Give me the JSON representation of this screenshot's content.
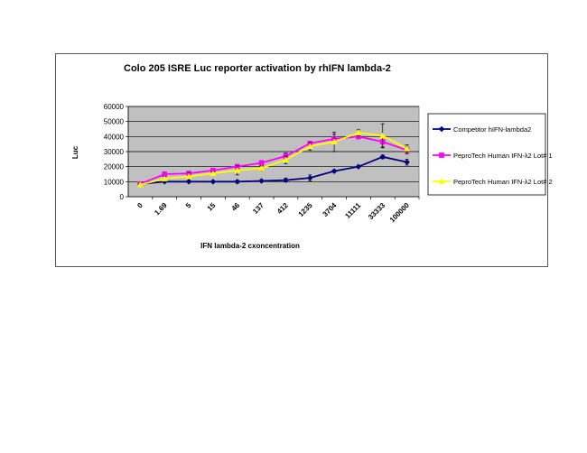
{
  "chart_data": {
    "type": "line",
    "title": "Colo 205 ISRE Luc reporter activation by rhIFN lambda-2",
    "xlabel": "IFN lambda-2 cxoncentration",
    "ylabel": "Luc",
    "categories": [
      "0",
      "1.69",
      "5",
      "15",
      "46",
      "137",
      "412",
      "1235",
      "3704",
      "11111",
      "33333",
      "100000"
    ],
    "ylim": [
      0,
      60000
    ],
    "yticks": [
      "0",
      "10000",
      "20000",
      "30000",
      "40000",
      "50000",
      "60000"
    ],
    "grid": true,
    "plot_background": "#c0c0c0",
    "legend_position": "right",
    "series": [
      {
        "name": "Competitor hIFN-lambda2",
        "color": "#000080",
        "marker": "diamond",
        "values": [
          8500,
          10000,
          10000,
          10000,
          10000,
          10500,
          11000,
          12500,
          17000,
          20000,
          26500,
          23000
        ],
        "errors": [
          600,
          500,
          500,
          400,
          1000,
          400,
          1200,
          2000,
          700,
          700,
          1200,
          2000
        ]
      },
      {
        "name": "PeproTech Human IFN-λ2 Lot# 1",
        "color": "#ff00ff",
        "marker": "square",
        "values": [
          8500,
          15000,
          15500,
          17500,
          20000,
          22500,
          27000,
          35500,
          38500,
          40000,
          36500,
          31000
        ],
        "errors": [
          1000,
          1500,
          1500,
          1200,
          1500,
          1500,
          2000,
          1500,
          3000,
          1500,
          3500,
          2500
        ]
      },
      {
        "name": "PeproTech Human IFN-λ2 Lot# 2",
        "color": "#ffff00",
        "marker": "triangle",
        "values": [
          8000,
          12000,
          13500,
          15500,
          17500,
          19000,
          24500,
          33500,
          36500,
          42500,
          40500,
          32000
        ],
        "errors": [
          1000,
          1500,
          2500,
          1500,
          3000,
          1500,
          2500,
          2500,
          6500,
          2000,
          8000,
          2500
        ]
      }
    ]
  }
}
